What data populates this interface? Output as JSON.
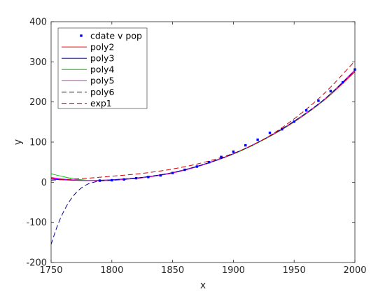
{
  "chart_data": {
    "type": "line",
    "title": "",
    "xlabel": "x",
    "ylabel": "y",
    "xlim": [
      1750,
      2000
    ],
    "ylim": [
      -200,
      400
    ],
    "xticks": [
      1750,
      1800,
      1850,
      1900,
      1950,
      2000
    ],
    "yticks": [
      -200,
      -100,
      0,
      100,
      200,
      300,
      400
    ],
    "grid": false,
    "legend_position": "top-left",
    "scatter": {
      "name": "cdate v pop",
      "color": "#0000ff",
      "x": [
        1790,
        1800,
        1810,
        1820,
        1830,
        1840,
        1850,
        1860,
        1870,
        1880,
        1890,
        1900,
        1910,
        1920,
        1930,
        1940,
        1950,
        1960,
        1970,
        1980,
        1990,
        2000
      ],
      "y": [
        4,
        5,
        7,
        10,
        13,
        17,
        23,
        31,
        39,
        50,
        63,
        76,
        92,
        106,
        123,
        132,
        151,
        179,
        203,
        227,
        249,
        281
      ]
    },
    "series": [
      {
        "name": "poly2",
        "color": "#ff0000",
        "dash": "solid",
        "x": [
          1750,
          1760,
          1770,
          1780,
          1790,
          1800,
          1825,
          1850,
          1875,
          1900,
          1925,
          1950,
          1975,
          2000
        ],
        "y": [
          10,
          7,
          5,
          4.5,
          5,
          6,
          12,
          24,
          44,
          71,
          106,
          150,
          205,
          275
        ]
      },
      {
        "name": "poly3",
        "color": "#0000ff",
        "dash": "solid",
        "x": [
          1750,
          1760,
          1770,
          1780,
          1790,
          1800,
          1825,
          1850,
          1875,
          1900,
          1925,
          1950,
          1975,
          2000
        ],
        "y": [
          8,
          6,
          5,
          4.5,
          5,
          6,
          12,
          24,
          44,
          71,
          107,
          152,
          207,
          278
        ]
      },
      {
        "name": "poly4",
        "color": "#00cc00",
        "dash": "solid",
        "x": [
          1750,
          1760,
          1770,
          1780,
          1790,
          1800,
          1825,
          1850,
          1875,
          1900,
          1925,
          1950,
          1975,
          2000
        ],
        "y": [
          21,
          14,
          8,
          5,
          4,
          5,
          11,
          23,
          43,
          70,
          106,
          151,
          206,
          279
        ]
      },
      {
        "name": "poly5",
        "color": "#ff00ff",
        "dash": "solid",
        "x": [
          1750,
          1760,
          1770,
          1780,
          1790,
          1800,
          1825,
          1850,
          1875,
          1900,
          1925,
          1950,
          1975,
          2000
        ],
        "y": [
          12,
          8,
          6,
          4.5,
          4,
          5,
          11,
          23,
          43,
          71,
          107,
          152,
          207,
          280
        ]
      },
      {
        "name": "poly6",
        "color": "#00008b",
        "dash": "dashed",
        "x": [
          1750,
          1755,
          1760,
          1765,
          1770,
          1775,
          1780,
          1785,
          1790,
          1795,
          1800,
          1810,
          1825,
          1850,
          1875,
          1900,
          1925,
          1950,
          1975,
          2000
        ],
        "y": [
          -155,
          -110,
          -75,
          -48,
          -28,
          -14,
          -5,
          0,
          3,
          4,
          5,
          7,
          12,
          24,
          44,
          71,
          107,
          152,
          207,
          278
        ]
      },
      {
        "name": "exp1",
        "color": "#cc0000",
        "dash": "dashed",
        "x": [
          1750,
          1775,
          1800,
          1825,
          1850,
          1875,
          1900,
          1925,
          1950,
          1975,
          2000
        ],
        "y": [
          5,
          9,
          15,
          22,
          33,
          49,
          72,
          107,
          158,
          222,
          302
        ]
      }
    ]
  }
}
